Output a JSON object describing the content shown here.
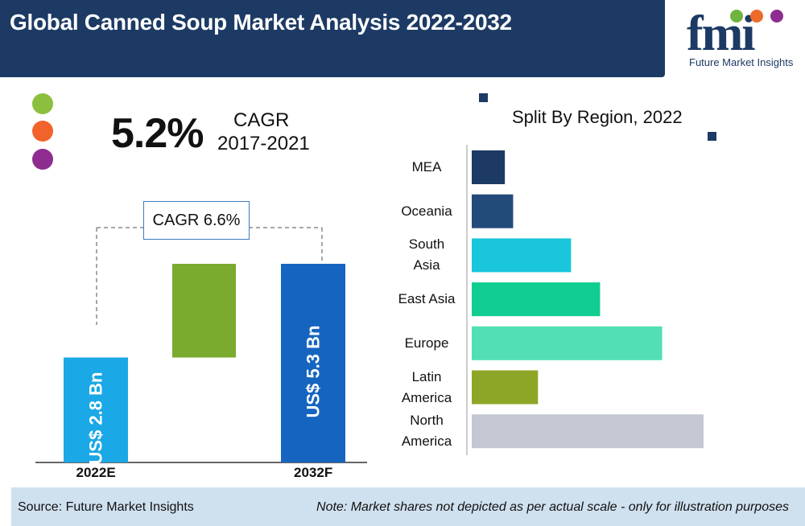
{
  "header": {
    "title": "Global Canned Soup Market Analysis 2022-2032",
    "logo_text": "fmi",
    "logo_caption": "Future Market Insights",
    "band_color": "#1c3a64"
  },
  "legend_dots": [
    {
      "color": "#8dbf3f"
    },
    {
      "color": "#f2622b"
    },
    {
      "color": "#8e2d8f"
    }
  ],
  "cagr_headline": {
    "value": "5.2%",
    "label": "CAGR",
    "period": "2017-2021"
  },
  "growth_box": "CAGR 6.6%",
  "chart_data": [
    {
      "type": "bar",
      "categories": [
        "2022E",
        "2032F"
      ],
      "values": [
        2.8,
        5.3
      ],
      "bar_labels": [
        "US$ 2.8 Bn",
        "US$ 5.3 Bn"
      ],
      "colors": [
        "#1aa8e6",
        "#1565c0",
        "#7aaa2e"
      ],
      "ylim": [
        0,
        6
      ]
    },
    {
      "type": "bar",
      "orientation": "horizontal",
      "title": "Split By Region, 2022",
      "categories": [
        "MEA",
        "Oceania",
        "South Asia",
        "East Asia",
        "Europe",
        "Latin America",
        "North America"
      ],
      "category_lines": [
        [
          "MEA"
        ],
        [
          "Oceania"
        ],
        [
          "South",
          "Asia"
        ],
        [
          "East Asia"
        ],
        [
          "Europe"
        ],
        [
          "Latin",
          "America"
        ],
        [
          "North",
          "America"
        ]
      ],
      "values": [
        4,
        5,
        12,
        15.5,
        23,
        8,
        28
      ],
      "colors": [
        "#1c3a64",
        "#234b7a",
        "#19c6db",
        "#11cd92",
        "#52dfb4",
        "#8ea627",
        "#c3c8d2"
      ],
      "xlim": [
        0,
        30
      ]
    }
  ],
  "footer": {
    "source": "Source: Future Market Insights",
    "note": "Note: Market shares not depicted as per actual scale - only for illustration purposes"
  }
}
